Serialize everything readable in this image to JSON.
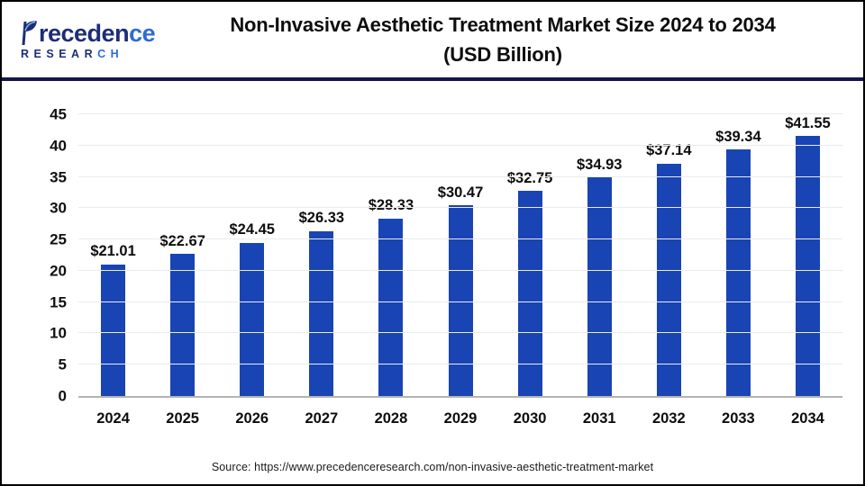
{
  "header": {
    "logo": {
      "name_part1": "receden",
      "name_part2": "ce",
      "sub_part1": "RESEAR",
      "sub_part2": "CH"
    },
    "title_line1": "Non-Invasive Aesthetic Treatment Market Size 2024 to 2034",
    "title_line2": "(USD Billion)"
  },
  "chart_data": {
    "type": "bar",
    "title": "Non-Invasive Aesthetic Treatment Market Size 2024 to 2034 (USD Billion)",
    "categories": [
      "2024",
      "2025",
      "2026",
      "2027",
      "2028",
      "2029",
      "2030",
      "2031",
      "2032",
      "2033",
      "2034"
    ],
    "values": [
      21.01,
      22.67,
      24.45,
      26.33,
      28.33,
      30.47,
      32.75,
      34.93,
      37.14,
      39.34,
      41.55
    ],
    "bar_labels": [
      "$21.01",
      "$22.67",
      "$24.45",
      "$26.33",
      "$28.33",
      "$30.47",
      "$32.75",
      "$34.93",
      "$37.14",
      "$39.34",
      "$41.55"
    ],
    "xlabel": "",
    "ylabel": "",
    "ylim": [
      0,
      45
    ],
    "ytick_step": 5,
    "grid": true,
    "legend": "none",
    "bar_color": "#1844b4",
    "baseline_color": "#b4b4b4",
    "gridline_color": "#ebebeb"
  },
  "footer": {
    "source": "Source: https://www.precedenceresearch.com/non-invasive-aesthetic-treatment-market"
  }
}
